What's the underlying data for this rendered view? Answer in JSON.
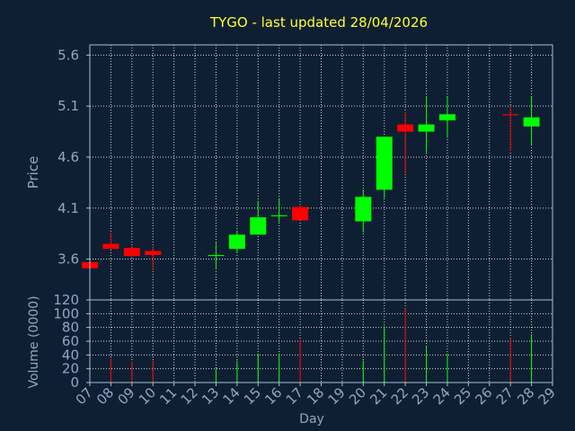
{
  "chart_data": [
    {
      "type": "candlestick",
      "title": "TYGO - last updated 28/04/2026",
      "ylabel": "Price",
      "xlabel": "Day",
      "ylim": [
        3.2,
        5.7
      ],
      "yticks": [
        "5.6",
        "5.1",
        "4.6",
        "4.1",
        "3.6"
      ],
      "ytick_values": [
        5.6,
        5.1,
        4.6,
        4.1,
        3.6
      ],
      "categories": [
        "07",
        "08",
        "09",
        "10",
        "11",
        "12",
        "13",
        "14",
        "15",
        "16",
        "17",
        "18",
        "19",
        "20",
        "21",
        "22",
        "23",
        "24",
        "25",
        "26",
        "27",
        "28",
        "29"
      ],
      "grid": true,
      "candles": [
        {
          "day": "07",
          "open": 3.57,
          "close": 3.51,
          "high": 3.57,
          "low": 3.51
        },
        {
          "day": "08",
          "open": 3.75,
          "close": 3.7,
          "high": 3.86,
          "low": 3.7
        },
        {
          "day": "09",
          "open": 3.71,
          "close": 3.63,
          "high": 3.73,
          "low": 3.62
        },
        {
          "day": "10",
          "open": 3.68,
          "close": 3.64,
          "high": 3.72,
          "low": 3.49
        },
        {
          "day": "13",
          "open": 3.63,
          "close": 3.64,
          "high": 3.76,
          "low": 3.5
        },
        {
          "day": "14",
          "open": 3.7,
          "close": 3.84,
          "high": 3.88,
          "low": 3.66
        },
        {
          "day": "15",
          "open": 3.84,
          "close": 4.01,
          "high": 4.17,
          "low": 3.84
        },
        {
          "day": "16",
          "open": 4.02,
          "close": 4.03,
          "high": 4.19,
          "low": 3.96
        },
        {
          "day": "17",
          "open": 4.11,
          "close": 3.98,
          "high": 4.14,
          "low": 3.98
        },
        {
          "day": "20",
          "open": 3.97,
          "close": 4.21,
          "high": 4.28,
          "low": 3.86
        },
        {
          "day": "21",
          "open": 4.28,
          "close": 4.8,
          "high": 4.8,
          "low": 4.2
        },
        {
          "day": "22",
          "open": 4.92,
          "close": 4.85,
          "high": 5.04,
          "low": 4.44
        },
        {
          "day": "23",
          "open": 4.85,
          "close": 4.92,
          "high": 5.2,
          "low": 4.65
        },
        {
          "day": "24",
          "open": 4.96,
          "close": 5.02,
          "high": 5.19,
          "low": 4.79
        },
        {
          "day": "27",
          "open": 5.02,
          "close": 5.01,
          "high": 5.1,
          "low": 4.66
        },
        {
          "day": "28",
          "open": 4.9,
          "close": 4.99,
          "high": 5.19,
          "low": 4.72
        }
      ]
    },
    {
      "type": "bar",
      "ylabel": "Volume (0000)",
      "ylim": [
        0,
        120
      ],
      "yticks": [
        "120",
        "100",
        "80",
        "60",
        "40",
        "20",
        "0"
      ],
      "ytick_values": [
        120,
        100,
        80,
        60,
        40,
        20,
        0
      ],
      "grid": true,
      "bars": [
        {
          "day": "08",
          "value": 35,
          "direction": "down"
        },
        {
          "day": "09",
          "value": 30,
          "direction": "down"
        },
        {
          "day": "10",
          "value": 32,
          "direction": "down"
        },
        {
          "day": "13",
          "value": 20,
          "direction": "up"
        },
        {
          "day": "14",
          "value": 32,
          "direction": "up"
        },
        {
          "day": "15",
          "value": 42,
          "direction": "up"
        },
        {
          "day": "16",
          "value": 42,
          "direction": "up"
        },
        {
          "day": "17",
          "value": 62,
          "direction": "down"
        },
        {
          "day": "20",
          "value": 32,
          "direction": "up"
        },
        {
          "day": "21",
          "value": 82,
          "direction": "up"
        },
        {
          "day": "22",
          "value": 108,
          "direction": "down"
        },
        {
          "day": "23",
          "value": 52,
          "direction": "up"
        },
        {
          "day": "24",
          "value": 42,
          "direction": "up"
        },
        {
          "day": "27",
          "value": 65,
          "direction": "down"
        },
        {
          "day": "28",
          "value": 70,
          "direction": "up"
        }
      ]
    }
  ],
  "colors": {
    "background": "#0f1f33",
    "frame": "#a9bfd6",
    "grid": "#c8d4e2",
    "axis_text": "#8ea8c3",
    "title": "#ffff33",
    "up": "#00ff00",
    "down": "#ff0000"
  }
}
